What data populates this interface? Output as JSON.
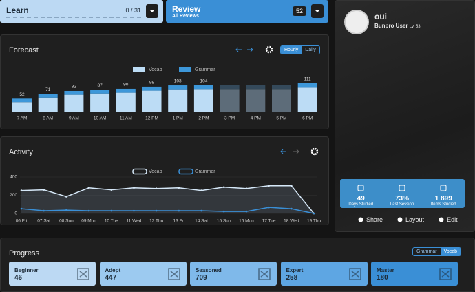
{
  "learn": {
    "title": "Learn",
    "count": "0 / 31"
  },
  "review": {
    "title": "Review",
    "subtitle": "All Reviews",
    "count": "52"
  },
  "profile": {
    "name": "oui",
    "role": "Bunpro User",
    "level": "Lv. 53"
  },
  "stats": [
    {
      "value": "49",
      "label": "Days Studied"
    },
    {
      "value": "73%",
      "label": "Last Session"
    },
    {
      "value": "1 899",
      "label": "Items Studied"
    }
  ],
  "actions": [
    "Share",
    "Layout",
    "Edit"
  ],
  "forecast_toggle": [
    "Hourly",
    "Daily"
  ],
  "progress": {
    "title": "Progress",
    "toggle": [
      "Grammar",
      "Vocab"
    ],
    "levels": [
      {
        "name": "Beginner",
        "count": "46"
      },
      {
        "name": "Adept",
        "count": "447"
      },
      {
        "name": "Seasoned",
        "count": "709"
      },
      {
        "name": "Expert",
        "count": "258"
      },
      {
        "name": "Master",
        "count": "180"
      }
    ]
  },
  "chart_data": [
    {
      "type": "bar",
      "title": "Forecast",
      "stacked": true,
      "categories": [
        "7 AM",
        "8 AM",
        "9 AM",
        "10 AM",
        "11 AM",
        "12 PM",
        "1 PM",
        "2 PM",
        "3 PM",
        "4 PM",
        "5 PM",
        "6 PM"
      ],
      "series": [
        {
          "name": "Vocab",
          "color": "#bcdcf5",
          "empty_color": "#5d6c79",
          "values": [
            39,
            56,
            67,
            72,
            75,
            83,
            88,
            89,
            89,
            89,
            89,
            94
          ]
        },
        {
          "name": "Grammar",
          "color": "#3d97d9",
          "empty_color": "#34495a",
          "values": [
            13,
            15,
            15,
            15,
            15,
            15,
            15,
            15,
            15,
            15,
            15,
            17
          ]
        }
      ],
      "totals": [
        52,
        71,
        82,
        87,
        90,
        98,
        103,
        104,
        null,
        null,
        null,
        111
      ]
    },
    {
      "type": "line",
      "title": "Activity",
      "categories": [
        "06 Fri",
        "07 Sat",
        "08 Sun",
        "09 Mon",
        "10 Tue",
        "11 Wed",
        "12 Thu",
        "13 Fri",
        "14 Sat",
        "15 Sun",
        "16 Mon",
        "17 Tue",
        "18 Wed",
        "19 Thu"
      ],
      "series": [
        {
          "name": "Vocab",
          "color": "#d6e8f8",
          "values": [
            252,
            259,
            185,
            281,
            259,
            281,
            274,
            281,
            252,
            289,
            274,
            304,
            304,
            0
          ]
        },
        {
          "name": "Grammar",
          "color": "#3a8fd6",
          "values": [
            52,
            30,
            37,
            30,
            30,
            30,
            30,
            30,
            30,
            22,
            22,
            67,
            52,
            0
          ]
        }
      ],
      "ylim": [
        0,
        400
      ],
      "yticks": [
        0,
        200,
        400
      ],
      "grid": true
    }
  ]
}
